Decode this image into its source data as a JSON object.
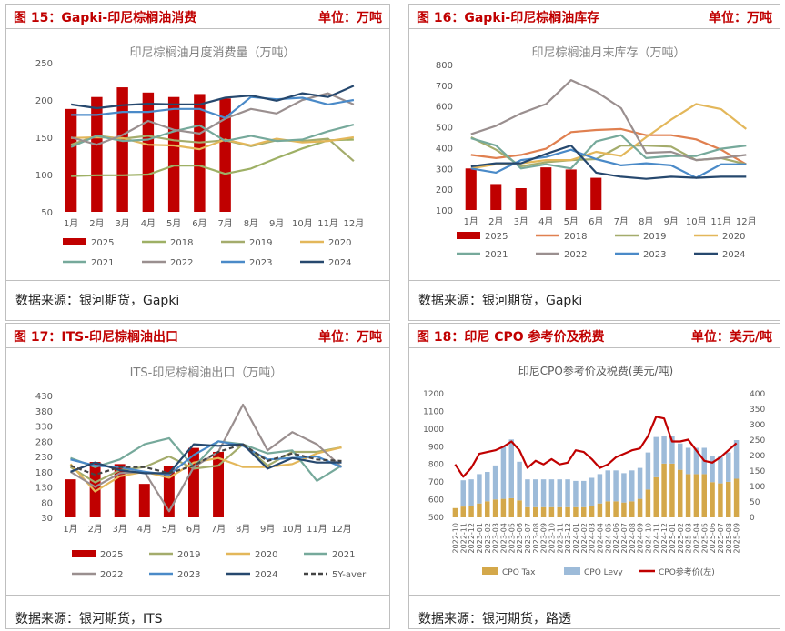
{
  "panels": [
    {
      "title": "图 15：Gapki-印尼棕榈油消费",
      "unit": "单位：万吨",
      "source": "数据来源：银河期货，Gapki"
    },
    {
      "title": "图 16：Gapki-印尼棕榈油库存",
      "unit": "单位：万吨",
      "source": "数据来源：银河期货，Gapki"
    },
    {
      "title": "图 17：ITS-印尼棕榈油出口",
      "unit": "单位：万吨",
      "source": "数据来源：银河期货，ITS"
    },
    {
      "title": "图 18：印尼 CPO 参考价及税费",
      "unit": "单位：美元/吨",
      "source": "数据来源：银河期货，路透"
    }
  ],
  "chart_data": [
    {
      "type": "bar",
      "title": "印尼棕榈油月度消费量（万吨）",
      "categories": [
        "1月",
        "2月",
        "3月",
        "4月",
        "5月",
        "6月",
        "7月",
        "8月",
        "9月",
        "10月",
        "11月",
        "12月"
      ],
      "ylim": [
        50,
        250
      ],
      "yticks": [
        50,
        100,
        150,
        200,
        250
      ],
      "grid": false,
      "legend_position": "bottom",
      "bar_series": {
        "name": "2025",
        "color": "#c00000",
        "values": [
          188,
          204,
          217,
          210,
          204,
          208,
          202
        ]
      },
      "series": [
        {
          "name": "2018",
          "color": "#9eb065",
          "values": [
            98,
            99,
            99,
            100,
            112,
            112,
            101,
            108,
            122,
            135,
            146,
            147
          ]
        },
        {
          "name": "2019",
          "color": "#a4ac6c",
          "values": [
            140,
            152,
            148,
            152,
            146,
            143,
            146,
            138,
            146,
            145,
            148,
            118
          ]
        },
        {
          "name": "2020",
          "color": "#e3b75a",
          "values": [
            149,
            150,
            149,
            140,
            139,
            134,
            147,
            139,
            148,
            143,
            145,
            150
          ]
        },
        {
          "name": "2021",
          "color": "#76a99b",
          "values": [
            137,
            152,
            145,
            147,
            158,
            166,
            145,
            152,
            145,
            147,
            158,
            167
          ]
        },
        {
          "name": "2022",
          "color": "#9a8f8f",
          "values": [
            150,
            140,
            153,
            172,
            160,
            155,
            175,
            188,
            182,
            200,
            209,
            194
          ]
        },
        {
          "name": "2023",
          "color": "#4a8ac8",
          "values": [
            180,
            180,
            184,
            184,
            188,
            188,
            176,
            204,
            201,
            203,
            194,
            200
          ]
        },
        {
          "name": "2024",
          "color": "#26486e",
          "values": [
            194,
            189,
            193,
            195,
            194,
            194,
            203,
            206,
            199,
            209,
            204,
            219
          ]
        }
      ]
    },
    {
      "type": "bar",
      "title": "印尼棕榈油月末库存（万吨）",
      "categories": [
        "1月",
        "2月",
        "3月",
        "4月",
        "5月",
        "6月",
        "7月",
        "8月",
        "9月",
        "10月",
        "11月",
        "12月"
      ],
      "ylim": [
        100,
        800
      ],
      "yticks": [
        100,
        200,
        300,
        400,
        500,
        600,
        700,
        800
      ],
      "grid": false,
      "legend_position": "bottom",
      "bar_series": {
        "name": "2025",
        "color": "#c00000",
        "values": [
          300,
          225,
          205,
          305,
          295,
          255
        ]
      },
      "series": [
        {
          "name": "2018",
          "color": "#e08050",
          "values": [
            365,
            350,
            365,
            395,
            475,
            485,
            490,
            460,
            460,
            440,
            390,
            320
          ]
        },
        {
          "name": "2019",
          "color": "#a4ac6c",
          "values": [
            450,
            390,
            310,
            330,
            340,
            345,
            410,
            410,
            405,
            340,
            350,
            320
          ]
        },
        {
          "name": "2020",
          "color": "#e3b75a",
          "values": [
            300,
            320,
            325,
            340,
            340,
            380,
            360,
            450,
            535,
            610,
            585,
            490
          ]
        },
        {
          "name": "2021",
          "color": "#76a99b",
          "values": [
            445,
            410,
            300,
            320,
            300,
            430,
            460,
            350,
            360,
            360,
            395,
            410
          ]
        },
        {
          "name": "2022",
          "color": "#9a8f8f",
          "values": [
            465,
            505,
            565,
            610,
            725,
            670,
            590,
            375,
            380,
            340,
            350,
            365
          ]
        },
        {
          "name": "2023",
          "color": "#4a8ac8",
          "values": [
            300,
            280,
            340,
            355,
            390,
            345,
            315,
            325,
            315,
            255,
            320,
            320
          ]
        },
        {
          "name": "2024",
          "color": "#26486e",
          "values": [
            310,
            325,
            325,
            370,
            410,
            280,
            260,
            250,
            260,
            255,
            260,
            260
          ]
        }
      ]
    },
    {
      "type": "bar",
      "title": "ITS-印尼棕榈油出口（万吨）",
      "categories": [
        "1月",
        "2月",
        "3月",
        "4月",
        "5月",
        "6月",
        "7月",
        "8月",
        "9月",
        "10月",
        "11月",
        "12月"
      ],
      "ylim": [
        30,
        430
      ],
      "yticks": [
        30,
        80,
        130,
        180,
        230,
        280,
        330,
        380,
        430
      ],
      "grid": false,
      "legend_position": "bottom",
      "bar_series": {
        "name": "2025",
        "color": "#c00000",
        "values": [
          155,
          212,
          205,
          140,
          198,
          258,
          245
        ]
      },
      "series": [
        {
          "name": "2019",
          "color": "#a4ac6c",
          "values": [
            195,
            145,
            185,
            195,
            230,
            190,
            200,
            270,
            200,
            245,
            245,
            260
          ]
        },
        {
          "name": "2020",
          "color": "#e3b75a",
          "values": [
            205,
            115,
            165,
            180,
            160,
            210,
            225,
            195,
            195,
            205,
            240,
            260
          ]
        },
        {
          "name": "2021",
          "color": "#76a99b",
          "values": [
            225,
            195,
            220,
            270,
            290,
            195,
            280,
            270,
            240,
            250,
            150,
            200
          ]
        },
        {
          "name": "2022",
          "color": "#9a8f8f",
          "values": [
            180,
            130,
            175,
            180,
            50,
            195,
            245,
            400,
            250,
            310,
            270,
            195
          ]
        },
        {
          "name": "2023",
          "color": "#4a8ac8",
          "values": [
            220,
            200,
            195,
            180,
            170,
            235,
            280,
            265,
            220,
            225,
            230,
            195
          ]
        },
        {
          "name": "2024",
          "color": "#26486e",
          "values": [
            180,
            210,
            185,
            175,
            175,
            270,
            265,
            270,
            190,
            225,
            210,
            210
          ]
        },
        {
          "name": "5Y-aver",
          "color": "#444444",
          "dashed": true,
          "values": [
            200,
            170,
            195,
            195,
            175,
            200,
            245,
            270,
            215,
            240,
            220,
            215
          ]
        }
      ]
    },
    {
      "type": "bar",
      "title": "印尼CPO参考价及税费(美元/吨)",
      "categories": [
        "2022-10",
        "2022-11",
        "2022-12",
        "2023-01",
        "2023-02",
        "2023-03",
        "2023-04",
        "2023-05",
        "2023-06",
        "2023-07",
        "2023-08",
        "2023-09",
        "2023-10",
        "2023-11",
        "2023-12",
        "2024-01",
        "2024-02",
        "2024-03",
        "2024-04",
        "2024-05",
        "2024-06",
        "2024-07",
        "2024-08",
        "2024-09",
        "2024-10",
        "2024-11",
        "2024-12",
        "2025-01",
        "2025-02",
        "2025-03",
        "2025-04",
        "2025-05",
        "2025-06",
        "2025-07",
        "2025-08",
        "2025-09"
      ],
      "ylim_left": [
        500,
        1200
      ],
      "yticks_left": [
        500,
        600,
        700,
        800,
        900,
        1000,
        1100,
        1200
      ],
      "ylim_right": [
        0,
        400
      ],
      "yticks_right": [
        0,
        50,
        100,
        150,
        200,
        250,
        300,
        350,
        400
      ],
      "grid": false,
      "legend_position": "bottom",
      "stacked_series": [
        {
          "name": "CPO Tax",
          "color": "#d4a84a",
          "axis": "right",
          "values": [
            30,
            35,
            38,
            45,
            52,
            58,
            60,
            62,
            55,
            33,
            33,
            33,
            33,
            33,
            33,
            33,
            33,
            38,
            45,
            52,
            52,
            48,
            52,
            60,
            90,
            130,
            174,
            174,
            154,
            140,
            140,
            140,
            114,
            110,
            115,
            125
          ]
        },
        {
          "name": "CPO Levy",
          "color": "#9dbbd9",
          "axis": "right",
          "values": [
            0,
            85,
            85,
            95,
            95,
            110,
            170,
            190,
            125,
            90,
            90,
            90,
            90,
            90,
            90,
            85,
            85,
            90,
            95,
            100,
            100,
            95,
            100,
            100,
            120,
            130,
            90,
            90,
            85,
            85,
            85,
            85,
            85,
            90,
            95,
            125
          ]
        }
      ],
      "series": [
        {
          "name": "CPO参考价(左)",
          "color": "#c00000",
          "axis": "left",
          "values": [
            800,
            730,
            780,
            860,
            870,
            880,
            900,
            930,
            880,
            780,
            820,
            800,
            830,
            800,
            810,
            880,
            870,
            830,
            780,
            800,
            840,
            860,
            880,
            890,
            960,
            1070,
            1060,
            930,
            930,
            940,
            880,
            820,
            810,
            840,
            880,
            920
          ]
        }
      ]
    }
  ]
}
